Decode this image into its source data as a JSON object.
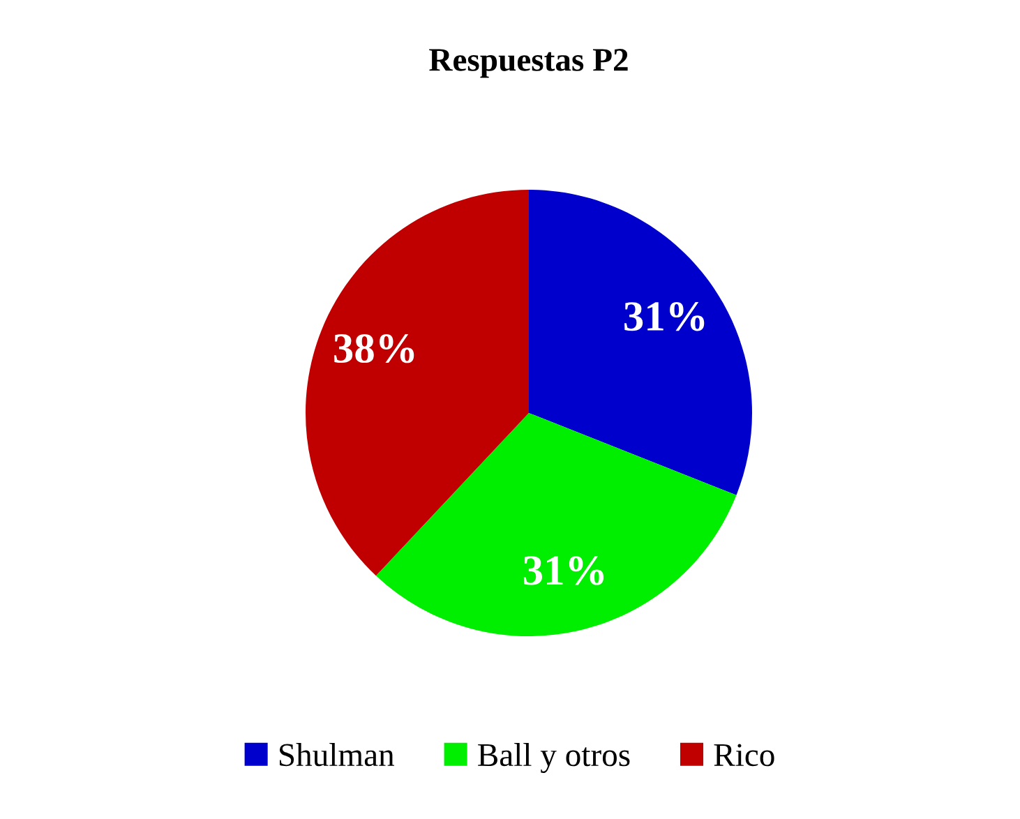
{
  "chart_data": {
    "type": "pie",
    "title": "Respuestas P2",
    "categories": [
      "Shulman",
      "Ball y otros",
      "Rico"
    ],
    "values": [
      31,
      31,
      38
    ],
    "colors": [
      "#0000cc",
      "#00ee00",
      "#c00000"
    ],
    "value_labels": [
      "31%",
      "31%",
      "38%"
    ],
    "legend": "bottom"
  }
}
